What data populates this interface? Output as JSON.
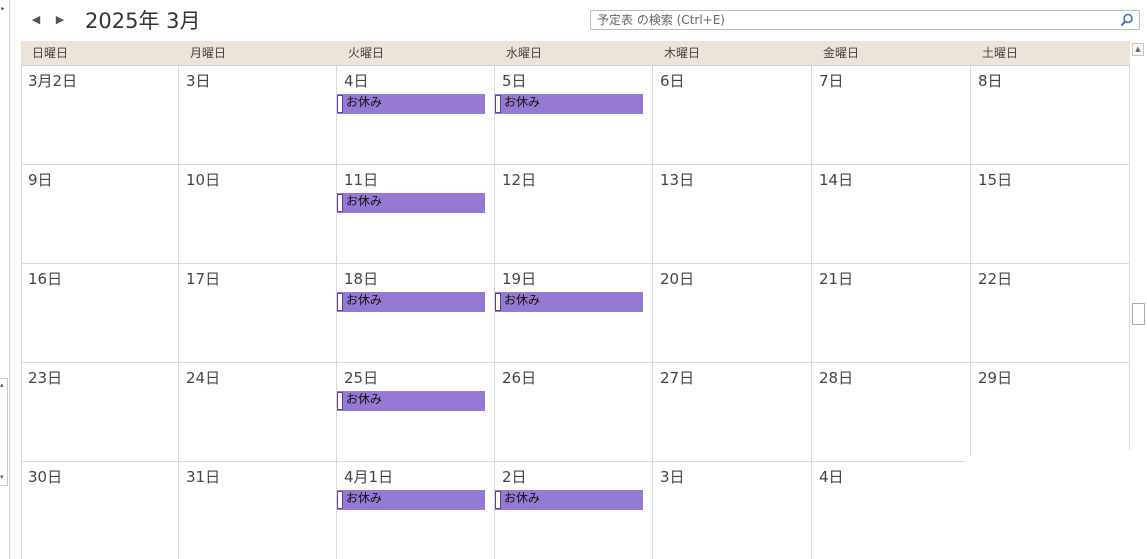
{
  "header": {
    "prev_label": "◀",
    "next_label": "▶",
    "month_title": "2025年 3月",
    "search_placeholder": "予定表 の検索 (Ctrl+E)"
  },
  "weekdays": [
    "日曜日",
    "月曜日",
    "火曜日",
    "水曜日",
    "木曜日",
    "金曜日",
    "土曜日"
  ],
  "weeks": [
    [
      {
        "label": "3月2日",
        "event": ""
      },
      {
        "label": "3日",
        "event": ""
      },
      {
        "label": "4日",
        "event": "お休み"
      },
      {
        "label": "5日",
        "event": "お休み"
      },
      {
        "label": "6日",
        "event": ""
      },
      {
        "label": "7日",
        "event": ""
      },
      {
        "label": "8日",
        "event": ""
      }
    ],
    [
      {
        "label": "9日",
        "event": ""
      },
      {
        "label": "10日",
        "event": ""
      },
      {
        "label": "11日",
        "event": "お休み"
      },
      {
        "label": "12日",
        "event": ""
      },
      {
        "label": "13日",
        "event": ""
      },
      {
        "label": "14日",
        "event": ""
      },
      {
        "label": "15日",
        "event": ""
      }
    ],
    [
      {
        "label": "16日",
        "event": ""
      },
      {
        "label": "17日",
        "event": ""
      },
      {
        "label": "18日",
        "event": "お休み"
      },
      {
        "label": "19日",
        "event": "お休み"
      },
      {
        "label": "20日",
        "event": ""
      },
      {
        "label": "21日",
        "event": ""
      },
      {
        "label": "22日",
        "event": ""
      }
    ],
    [
      {
        "label": "23日",
        "event": ""
      },
      {
        "label": "24日",
        "event": ""
      },
      {
        "label": "25日",
        "event": "お休み"
      },
      {
        "label": "26日",
        "event": ""
      },
      {
        "label": "27日",
        "event": ""
      },
      {
        "label": "28日",
        "event": ""
      },
      {
        "label": "29日",
        "event": ""
      }
    ],
    [
      {
        "label": "30日",
        "event": ""
      },
      {
        "label": "31日",
        "event": ""
      },
      {
        "label": "4月1日",
        "event": "お休み"
      },
      {
        "label": "2日",
        "event": "お休み"
      },
      {
        "label": "3日",
        "event": ""
      },
      {
        "label": "4日",
        "event": ""
      },
      {
        "label": "",
        "event": ""
      }
    ]
  ],
  "colors": {
    "event_fill": "#9679d2",
    "header_row": "#ede4d9",
    "grid_line": "#d9d9d9"
  },
  "icons": {
    "prev": "triangle-left-icon",
    "next": "triangle-right-icon",
    "search": "magnifier-icon"
  }
}
